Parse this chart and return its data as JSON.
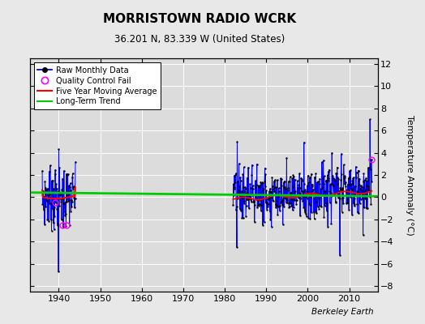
{
  "title": "MORRISTOWN RADIO WCRK",
  "subtitle": "36.201 N, 83.339 W (United States)",
  "ylabel": "Temperature Anomaly (°C)",
  "watermark": "Berkeley Earth",
  "ylim": [
    -8.5,
    12.5
  ],
  "ylim_display": [
    -8,
    12
  ],
  "xlim": [
    1933,
    2017
  ],
  "yticks": [
    -8,
    -6,
    -4,
    -2,
    0,
    2,
    4,
    6,
    8,
    10,
    12
  ],
  "xticks": [
    1940,
    1950,
    1960,
    1970,
    1980,
    1990,
    2000,
    2010
  ],
  "bg_color": "#e8e8e8",
  "plot_bg_color": "#dcdcdc",
  "colors": {
    "raw_line": "#0000ff",
    "raw_dot": "#000000",
    "qc_fail": "#ff00ff",
    "moving_avg": "#ff0000",
    "long_term": "#00cc00",
    "grid": "#ffffff"
  },
  "long_term_trend": {
    "x": [
      1933,
      2017
    ],
    "y": [
      0.42,
      0.08
    ]
  }
}
